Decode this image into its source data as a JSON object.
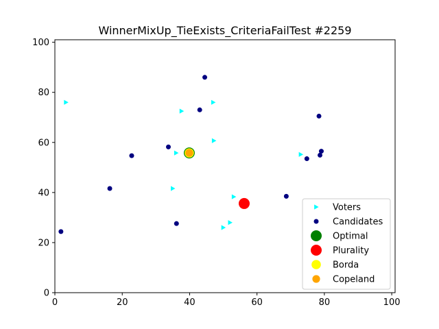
{
  "chart_data": {
    "type": "scatter",
    "title": "WinnerMixUp_TieExists_CriteriaFailTest #2259",
    "xlabel": "",
    "ylabel": "",
    "xlim": [
      0,
      101
    ],
    "ylim": [
      0,
      101
    ],
    "xticks": [
      0,
      20,
      40,
      60,
      80,
      100
    ],
    "yticks": [
      0,
      20,
      40,
      60,
      80,
      100
    ],
    "grid": false,
    "legend_position": "lower-right",
    "series": [
      {
        "name": "Voters",
        "marker": "triangle-right",
        "color": "#00ffff",
        "points": [
          [
            3.3,
            76
          ],
          [
            47,
            76
          ],
          [
            37.6,
            72.5
          ],
          [
            47.2,
            60.7
          ],
          [
            36,
            55.8
          ],
          [
            73,
            55.2
          ],
          [
            35,
            41.6
          ],
          [
            53.1,
            38.3
          ],
          [
            52,
            28
          ],
          [
            50,
            26
          ]
        ]
      },
      {
        "name": "Candidates",
        "marker": "circle",
        "color": "#000080",
        "points": [
          [
            44.5,
            86
          ],
          [
            43,
            73
          ],
          [
            78.4,
            70.5
          ],
          [
            33.7,
            58.2
          ],
          [
            22.8,
            54.7
          ],
          [
            79.1,
            56.5
          ],
          [
            78.7,
            54.9
          ],
          [
            74.8,
            53.5
          ],
          [
            16.3,
            41.6
          ],
          [
            68.7,
            38.5
          ],
          [
            36.1,
            27.6
          ],
          [
            1.8,
            24.4
          ]
        ]
      },
      {
        "name": "Optimal",
        "marker": "circle-large",
        "color": "#008000",
        "points": [
          [
            39.9,
            55.8
          ]
        ]
      },
      {
        "name": "Plurality",
        "marker": "circle-large",
        "color": "#ff0000",
        "points": [
          [
            56.2,
            35.6
          ]
        ]
      },
      {
        "name": "Borda",
        "marker": "circle-medium",
        "color": "#ffff00",
        "points": [
          [
            39.9,
            55.8
          ]
        ]
      },
      {
        "name": "Copeland",
        "marker": "circle-small",
        "color": "#ffa500",
        "points": [
          [
            39.9,
            55.8
          ]
        ]
      }
    ]
  }
}
